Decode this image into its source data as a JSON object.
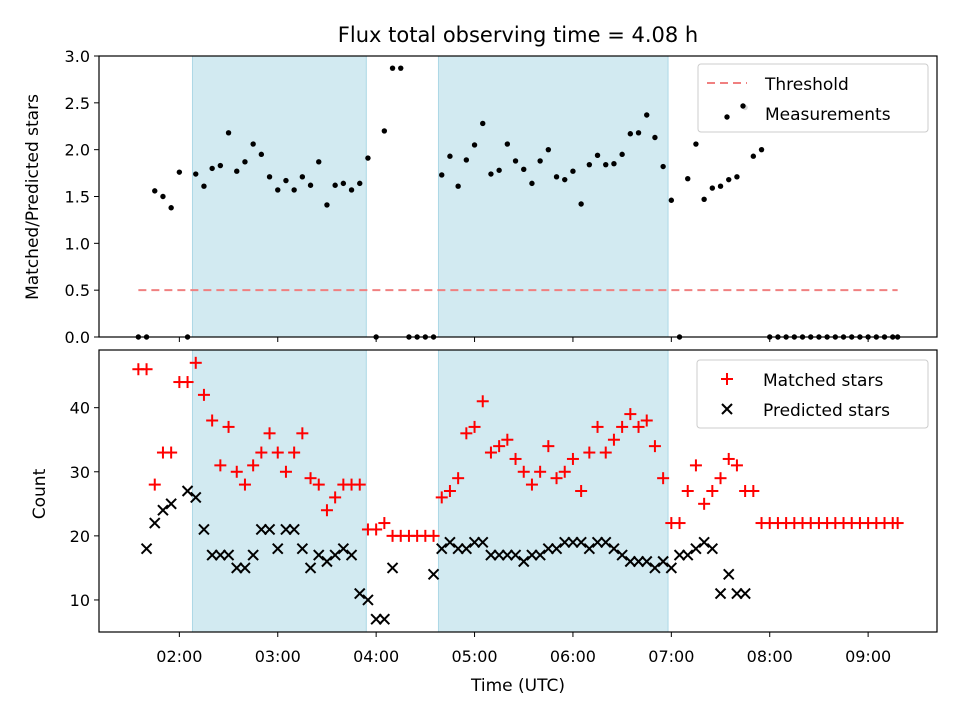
{
  "figure": {
    "title": "Flux total observing time = 4.08 h"
  },
  "chart_data": [
    {
      "type": "scatter",
      "ylabel": "Matched/Predicted stars",
      "ylim": [
        0,
        3.0
      ],
      "yticks": [
        0,
        0.5,
        1.0,
        1.5,
        2.0,
        2.5,
        3.0
      ],
      "ytick_labels": [
        "0.0",
        "0.5",
        "1.0",
        "1.5",
        "2.0",
        "2.5",
        "3.0"
      ],
      "xlim": [
        "01:11",
        "09:42"
      ],
      "shaded_spans": [
        [
          "02:08",
          "03:54"
        ],
        [
          "04:38",
          "06:58"
        ]
      ],
      "shade_color": "#add8e6",
      "legend_position": "upper right",
      "threshold": {
        "name": "Threshold",
        "y": 0.5,
        "x_start": "01:35",
        "x_end": "09:18",
        "color": "#f08080",
        "style": "dashed"
      },
      "series": [
        {
          "name": "Measurements",
          "marker": "dot",
          "color": "#000000",
          "x": [
            "01:35",
            "01:40",
            "01:45",
            "01:50",
            "01:55",
            "02:00",
            "02:05",
            "02:10",
            "02:15",
            "02:20",
            "02:25",
            "02:30",
            "02:35",
            "02:40",
            "02:45",
            "02:50",
            "02:55",
            "03:00",
            "03:05",
            "03:10",
            "03:15",
            "03:20",
            "03:25",
            "03:30",
            "03:35",
            "03:40",
            "03:45",
            "03:50",
            "03:55",
            "04:00",
            "04:05",
            "04:10",
            "04:15",
            "04:20",
            "04:25",
            "04:30",
            "04:35",
            "04:40",
            "04:45",
            "04:50",
            "04:55",
            "05:00",
            "05:05",
            "05:10",
            "05:15",
            "05:20",
            "05:25",
            "05:30",
            "05:35",
            "05:40",
            "05:45",
            "05:50",
            "05:55",
            "06:00",
            "06:05",
            "06:10",
            "06:15",
            "06:20",
            "06:25",
            "06:30",
            "06:35",
            "06:40",
            "06:45",
            "06:50",
            "06:55",
            "07:00",
            "07:05",
            "07:10",
            "07:15",
            "07:20",
            "07:25",
            "07:30",
            "07:35",
            "07:40",
            "07:45",
            "07:50",
            "07:55",
            "08:00",
            "08:05",
            "08:10",
            "08:15",
            "08:20",
            "08:25",
            "08:30",
            "08:35",
            "08:40",
            "08:45",
            "08:50",
            "08:55",
            "09:00",
            "09:05",
            "09:10",
            "09:15",
            "09:18"
          ],
          "y": [
            0,
            0,
            1.56,
            1.5,
            1.38,
            1.76,
            0,
            1.74,
            1.61,
            1.8,
            1.83,
            2.18,
            1.77,
            1.87,
            2.06,
            1.95,
            1.71,
            1.57,
            1.67,
            1.57,
            1.71,
            1.62,
            1.87,
            1.41,
            1.62,
            1.64,
            1.57,
            1.64,
            1.91,
            0,
            2.2,
            2.87,
            2.87,
            0,
            0,
            0,
            0,
            1.73,
            1.93,
            1.61,
            1.89,
            2.05,
            2.28,
            1.74,
            1.78,
            2.06,
            1.88,
            1.79,
            1.64,
            1.88,
            2.0,
            1.71,
            1.68,
            1.77,
            1.42,
            1.84,
            1.94,
            1.84,
            1.85,
            1.95,
            2.17,
            2.18,
            2.37,
            2.13,
            1.82,
            1.46,
            0,
            1.69,
            2.06,
            1.47,
            1.59,
            1.61,
            1.68,
            1.71,
            2.45,
            1.93,
            2.0,
            0,
            0,
            0,
            0,
            0,
            0,
            0,
            0,
            0,
            0,
            0,
            0,
            0,
            0,
            0,
            0,
            0
          ]
        }
      ]
    },
    {
      "type": "scatter",
      "xlabel": "Time (UTC)",
      "ylabel": "Count",
      "ylim": [
        5,
        49
      ],
      "yticks": [
        10,
        20,
        30,
        40
      ],
      "ytick_labels": [
        "10",
        "20",
        "30",
        "40"
      ],
      "xlim": [
        "01:11",
        "09:42"
      ],
      "xticks": [
        "02:00",
        "03:00",
        "04:00",
        "05:00",
        "06:00",
        "07:00",
        "08:00",
        "09:00"
      ],
      "shaded_spans": [
        [
          "02:08",
          "03:54"
        ],
        [
          "04:38",
          "06:58"
        ]
      ],
      "shade_color": "#add8e6",
      "legend_position": "upper right",
      "series": [
        {
          "name": "Matched stars",
          "marker": "plus",
          "color": "#ff0000",
          "x": [
            "01:35",
            "01:40",
            "01:45",
            "01:50",
            "01:55",
            "02:00",
            "02:05",
            "02:10",
            "02:15",
            "02:20",
            "02:25",
            "02:30",
            "02:35",
            "02:40",
            "02:45",
            "02:50",
            "02:55",
            "03:00",
            "03:05",
            "03:10",
            "03:15",
            "03:20",
            "03:25",
            "03:30",
            "03:35",
            "03:40",
            "03:45",
            "03:50",
            "03:55",
            "04:00",
            "04:05",
            "04:10",
            "04:15",
            "04:20",
            "04:25",
            "04:30",
            "04:35",
            "04:40",
            "04:45",
            "04:50",
            "04:55",
            "05:00",
            "05:05",
            "05:10",
            "05:15",
            "05:20",
            "05:25",
            "05:30",
            "05:35",
            "05:40",
            "05:45",
            "05:50",
            "05:55",
            "06:00",
            "06:05",
            "06:10",
            "06:15",
            "06:20",
            "06:25",
            "06:30",
            "06:35",
            "06:40",
            "06:45",
            "06:50",
            "06:55",
            "07:00",
            "07:05",
            "07:10",
            "07:15",
            "07:20",
            "07:25",
            "07:30",
            "07:35",
            "07:40",
            "07:45",
            "07:50",
            "07:55",
            "08:00",
            "08:05",
            "08:10",
            "08:15",
            "08:20",
            "08:25",
            "08:30",
            "08:35",
            "08:40",
            "08:45",
            "08:50",
            "08:55",
            "09:00",
            "09:05",
            "09:10",
            "09:15",
            "09:18"
          ],
          "y": [
            46,
            46,
            28,
            33,
            33,
            44,
            44,
            47,
            42,
            38,
            31,
            37,
            30,
            28,
            31,
            33,
            36,
            33,
            30,
            33,
            36,
            29,
            28,
            24,
            26,
            28,
            28,
            28,
            21,
            21,
            22,
            20,
            20,
            20,
            20,
            20,
            20,
            26,
            27,
            29,
            36,
            37,
            41,
            33,
            34,
            35,
            32,
            30,
            28,
            30,
            34,
            29,
            30,
            32,
            27,
            33,
            37,
            33,
            35,
            37,
            39,
            37,
            38,
            34,
            29,
            22,
            22,
            27,
            31,
            25,
            27,
            29,
            32,
            31,
            27,
            27,
            22,
            22,
            22,
            22,
            22,
            22,
            22,
            22,
            22,
            22,
            22,
            22,
            22,
            22,
            22,
            22,
            22,
            22
          ]
        },
        {
          "name": "Predicted stars",
          "marker": "x",
          "color": "#000000",
          "x": [
            "01:40",
            "01:45",
            "01:50",
            "01:55",
            "02:05",
            "02:10",
            "02:15",
            "02:20",
            "02:25",
            "02:30",
            "02:35",
            "02:40",
            "02:45",
            "02:50",
            "02:55",
            "03:00",
            "03:05",
            "03:10",
            "03:15",
            "03:20",
            "03:25",
            "03:30",
            "03:35",
            "03:40",
            "03:45",
            "03:50",
            "03:55",
            "04:00",
            "04:05",
            "04:10",
            "04:35",
            "04:40",
            "04:45",
            "04:50",
            "04:55",
            "05:00",
            "05:05",
            "05:10",
            "05:15",
            "05:20",
            "05:25",
            "05:30",
            "05:35",
            "05:40",
            "05:45",
            "05:50",
            "05:55",
            "06:00",
            "06:05",
            "06:10",
            "06:15",
            "06:20",
            "06:25",
            "06:30",
            "06:35",
            "06:40",
            "06:45",
            "06:50",
            "06:55",
            "07:00",
            "07:05",
            "07:10",
            "07:15",
            "07:20",
            "07:25",
            "07:30",
            "07:35",
            "07:40",
            "07:45"
          ],
          "y": [
            18,
            22,
            24,
            25,
            27,
            26,
            21,
            17,
            17,
            17,
            15,
            15,
            17,
            21,
            21,
            18,
            21,
            21,
            18,
            15,
            17,
            16,
            17,
            18,
            17,
            11,
            10,
            7,
            7,
            15,
            14,
            18,
            19,
            18,
            18,
            19,
            19,
            17,
            17,
            17,
            17,
            16,
            17,
            17,
            18,
            18,
            19,
            19,
            19,
            18,
            19,
            19,
            18,
            17,
            16,
            16,
            16,
            15,
            16,
            15,
            17,
            17,
            18,
            19,
            18,
            11,
            14,
            11,
            11
          ]
        }
      ]
    }
  ]
}
